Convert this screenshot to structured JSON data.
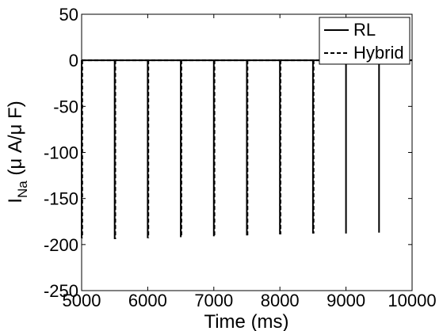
{
  "chart_data": {
    "type": "line",
    "title": "",
    "xlabel": "Time (ms)",
    "ylabel": {
      "main": "I",
      "sub": "Na",
      "units": " (μ A/μ F)"
    },
    "xlim": [
      5000,
      10000
    ],
    "ylim": [
      -250,
      50
    ],
    "xticks": [
      5000,
      6000,
      7000,
      8000,
      9000,
      10000
    ],
    "yticks": [
      50,
      0,
      -50,
      -100,
      -150,
      -200,
      -250
    ],
    "grid": false,
    "legend_position": "top-right",
    "series": [
      {
        "name": "RL",
        "line_style": "solid",
        "color": "#000000",
        "baseline": 0,
        "spikes": [
          {
            "x": 5000,
            "y": -193
          },
          {
            "x": 5500,
            "y": -194
          },
          {
            "x": 6000,
            "y": -193
          },
          {
            "x": 6500,
            "y": -192
          },
          {
            "x": 7000,
            "y": -191
          },
          {
            "x": 7500,
            "y": -190
          },
          {
            "x": 8000,
            "y": -189
          },
          {
            "x": 8500,
            "y": -188
          },
          {
            "x": 9000,
            "y": -188
          },
          {
            "x": 9500,
            "y": -187
          }
        ]
      },
      {
        "name": "Hybrid",
        "line_style": "dashed",
        "color": "#000000",
        "baseline": 0,
        "spikes": [
          {
            "x": 5000,
            "y": -193
          },
          {
            "x": 5500,
            "y": -194
          },
          {
            "x": 6000,
            "y": -193
          },
          {
            "x": 6500,
            "y": -192
          },
          {
            "x": 7000,
            "y": -191
          },
          {
            "x": 7500,
            "y": -190
          },
          {
            "x": 8000,
            "y": -189
          },
          {
            "x": 8500,
            "y": -188
          }
        ]
      }
    ]
  }
}
